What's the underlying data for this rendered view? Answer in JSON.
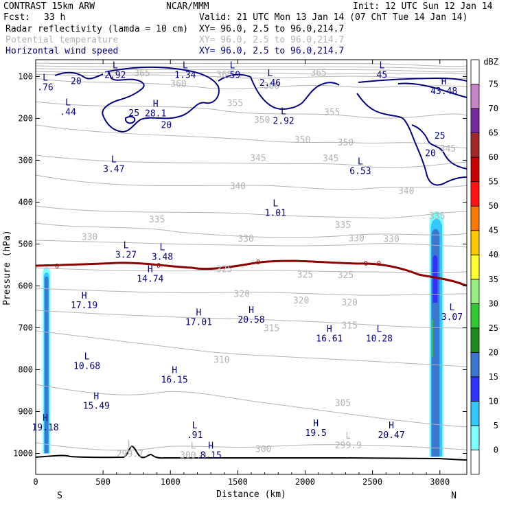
{
  "header": {
    "model": "CONTRAST 15km ARW",
    "center": "NCAR/MMM",
    "init": "Init: 12 UTC Sun 12 Jan 14",
    "fcst_label": "Fcst:",
    "fcst_value": "33 h",
    "valid": "Valid: 21 UTC Mon 13 Jan 14 (07 ChT Tue 14 Jan 14)"
  },
  "fields": [
    {
      "name": "Radar reflectivity (lamda = 10 cm)",
      "xy": "XY=  96.0,  2.5 to  96.0,214.7",
      "color": "#000000"
    },
    {
      "name": "Potential temperature",
      "xy": "XY=  96.0,  2.5 to  96.0,214.7",
      "color": "#b4b4b4"
    },
    {
      "name": "Horizontal wind speed",
      "xy": "XY=  96.0,  2.5 to  96.0,214.7",
      "color": "#000080"
    }
  ],
  "chart_data": {
    "type": "contour-cross-section",
    "xlabel": "Distance (km)",
    "ylabel": "Pressure (hPa)",
    "xlim": [
      0,
      3200
    ],
    "ylim": [
      1050,
      60
    ],
    "x_ticks": [
      0,
      500,
      1000,
      1500,
      2000,
      2500,
      3000
    ],
    "y_ticks": [
      100,
      200,
      300,
      400,
      500,
      600,
      700,
      800,
      900,
      1000
    ],
    "left_end_label": "S",
    "right_end_label": "N",
    "colorbar": {
      "unit": "dBZ",
      "levels": [
        0,
        5,
        10,
        15,
        20,
        25,
        30,
        35,
        40,
        45,
        50,
        55,
        60,
        65,
        70,
        75
      ],
      "colors": [
        "#ffffff",
        "#80ffff",
        "#33c8ff",
        "#3232ff",
        "#3c78d2",
        "#1e8c1e",
        "#32c832",
        "#96f080",
        "#ffff32",
        "#ffc800",
        "#ff7800",
        "#ff1414",
        "#c80000",
        "#a02828",
        "#7828a0",
        "#c884c8",
        "#ffffff"
      ]
    },
    "theta_labels": [
      {
        "x": 1400,
        "p": 96,
        "text": "365"
      },
      {
        "x": 2100,
        "p": 92,
        "text": "365"
      },
      {
        "x": 790,
        "p": 93,
        "text": "365"
      },
      {
        "x": 1060,
        "p": 118,
        "text": "360"
      },
      {
        "x": 1750,
        "p": 123,
        "text": "360"
      },
      {
        "x": 1480,
        "p": 164,
        "text": "355"
      },
      {
        "x": 2200,
        "p": 186,
        "text": "355"
      },
      {
        "x": 1680,
        "p": 204,
        "text": "350"
      },
      {
        "x": 1980,
        "p": 252,
        "text": "350"
      },
      {
        "x": 2300,
        "p": 258,
        "text": "350"
      },
      {
        "x": 1650,
        "p": 295,
        "text": "345"
      },
      {
        "x": 2190,
        "p": 296,
        "text": "345"
      },
      {
        "x": 3060,
        "p": 273,
        "text": "345"
      },
      {
        "x": 1500,
        "p": 362,
        "text": "340"
      },
      {
        "x": 2750,
        "p": 374,
        "text": "340"
      },
      {
        "x": 900,
        "p": 442,
        "text": "335"
      },
      {
        "x": 2280,
        "p": 455,
        "text": "335"
      },
      {
        "x": 2980,
        "p": 434,
        "text": "335"
      },
      {
        "x": 400,
        "p": 484,
        "text": "330"
      },
      {
        "x": 1560,
        "p": 488,
        "text": "330"
      },
      {
        "x": 2380,
        "p": 487,
        "text": "330"
      },
      {
        "x": 2640,
        "p": 489,
        "text": "330"
      },
      {
        "x": 1400,
        "p": 561,
        "text": "325"
      },
      {
        "x": 2000,
        "p": 574,
        "text": "325"
      },
      {
        "x": 2300,
        "p": 575,
        "text": "325"
      },
      {
        "x": 1530,
        "p": 620,
        "text": "320"
      },
      {
        "x": 1970,
        "p": 635,
        "text": "320"
      },
      {
        "x": 2330,
        "p": 640,
        "text": "320"
      },
      {
        "x": 1750,
        "p": 702,
        "text": "315"
      },
      {
        "x": 2330,
        "p": 695,
        "text": "315"
      },
      {
        "x": 1380,
        "p": 777,
        "text": "310"
      },
      {
        "x": 2280,
        "p": 880,
        "text": "305"
      },
      {
        "x": 1690,
        "p": 990,
        "text": "300"
      }
    ],
    "wind_speed_labels": [
      {
        "x": 300,
        "p": 110,
        "text": "20"
      },
      {
        "x": 730,
        "p": 186,
        "text": "25"
      },
      {
        "x": 970,
        "p": 215,
        "text": "20"
      },
      {
        "x": 3000,
        "p": 240,
        "text": "25"
      },
      {
        "x": 2930,
        "p": 282,
        "text": "20"
      }
    ],
    "extrema": [
      {
        "kind": "L",
        "value": "2.92",
        "x": 590,
        "p": 90
      },
      {
        "kind": "L",
        "value": "1.34",
        "x": 1110,
        "p": 90
      },
      {
        "kind": "L",
        "value": ".59",
        "x": 1460,
        "p": 90
      },
      {
        "kind": "L",
        "value": "2.46",
        "x": 1740,
        "p": 109
      },
      {
        "kind": "L",
        "value": "45",
        "x": 2570,
        "p": 90
      },
      {
        "kind": "L",
        "value": ".76",
        "x": 0,
        "p": 120
      },
      {
        "kind": "L",
        "value": ".44",
        "x": 240,
        "p": 179
      },
      {
        "kind": "H",
        "value": "28.1",
        "x": 890,
        "p": 182
      },
      {
        "kind": "H",
        "value": "43.48",
        "x": 3030,
        "p": 129
      },
      {
        "kind": "L",
        "value": "2.92",
        "x": 1840,
        "p": 200
      },
      {
        "kind": "L",
        "value": "3.47",
        "x": 580,
        "p": 315
      },
      {
        "kind": "L",
        "value": "6.53",
        "x": 2410,
        "p": 320
      },
      {
        "kind": "L",
        "value": "1.01",
        "x": 1780,
        "p": 420
      },
      {
        "kind": "L",
        "value": "3.27",
        "x": 670,
        "p": 520
      },
      {
        "kind": "L",
        "value": "3.48",
        "x": 940,
        "p": 525
      },
      {
        "kind": "H",
        "value": "14.74",
        "x": 850,
        "p": 577
      },
      {
        "kind": "H",
        "value": "17.19",
        "x": 360,
        "p": 640
      },
      {
        "kind": "H",
        "value": "17.01",
        "x": 1210,
        "p": 680
      },
      {
        "kind": "H",
        "value": "20.58",
        "x": 1600,
        "p": 675
      },
      {
        "kind": "H",
        "value": "16.61",
        "x": 2180,
        "p": 720
      },
      {
        "kind": "L",
        "value": "10.28",
        "x": 2550,
        "p": 720
      },
      {
        "kind": "L",
        "value": "3.07",
        "x": 3090,
        "p": 668
      },
      {
        "kind": "L",
        "value": "10.68",
        "x": 380,
        "p": 785
      },
      {
        "kind": "H",
        "value": "16.15",
        "x": 1030,
        "p": 818
      },
      {
        "kind": "H",
        "value": "15.49",
        "x": 450,
        "p": 880
      },
      {
        "kind": "H",
        "value": "19.18",
        "x": 70,
        "p": 932
      },
      {
        "kind": "L",
        "value": ".91",
        "x": 1180,
        "p": 950
      },
      {
        "kind": "H",
        "value": "19.5",
        "x": 2080,
        "p": 945
      },
      {
        "kind": "H",
        "value": "20.47",
        "x": 2640,
        "p": 950
      },
      {
        "kind": "L",
        "value": "299.9",
        "x": 2320,
        "p": 975
      },
      {
        "kind": "L",
        "value": "299.7",
        "x": 700,
        "p": 995
      },
      {
        "kind": "L",
        "value": "300.9",
        "x": 1170,
        "p": 998
      },
      {
        "kind": "H",
        "value": "8.15",
        "x": 1300,
        "p": 998
      }
    ]
  }
}
